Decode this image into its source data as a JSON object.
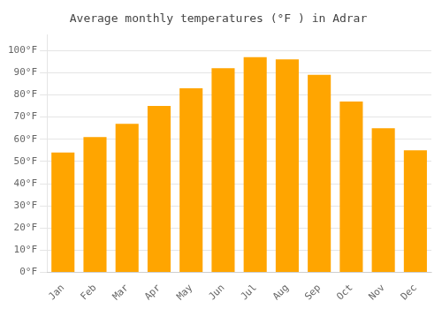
{
  "chart_data": {
    "type": "bar",
    "title": "Average monthly temperatures (°F ) in Adrar",
    "categories": [
      "Jan",
      "Feb",
      "Mar",
      "Apr",
      "May",
      "Jun",
      "Jul",
      "Aug",
      "Sep",
      "Oct",
      "Nov",
      "Dec"
    ],
    "values": [
      54,
      61,
      67,
      75,
      83,
      92,
      97,
      96,
      89,
      77,
      65,
      55
    ],
    "color": "#FFA500",
    "ylim": [
      0,
      107
    ],
    "yticks": [
      {
        "value": 0,
        "label": "0°F"
      },
      {
        "value": 10,
        "label": "10°F"
      },
      {
        "value": 20,
        "label": "20°F"
      },
      {
        "value": 30,
        "label": "30°F"
      },
      {
        "value": 40,
        "label": "40°F"
      },
      {
        "value": 50,
        "label": "50°F"
      },
      {
        "value": 60,
        "label": "60°F"
      },
      {
        "value": 70,
        "label": "70°F"
      },
      {
        "value": 80,
        "label": "80°F"
      },
      {
        "value": 90,
        "label": "90°F"
      },
      {
        "value": 100,
        "label": "100°F"
      }
    ],
    "grid": true
  }
}
